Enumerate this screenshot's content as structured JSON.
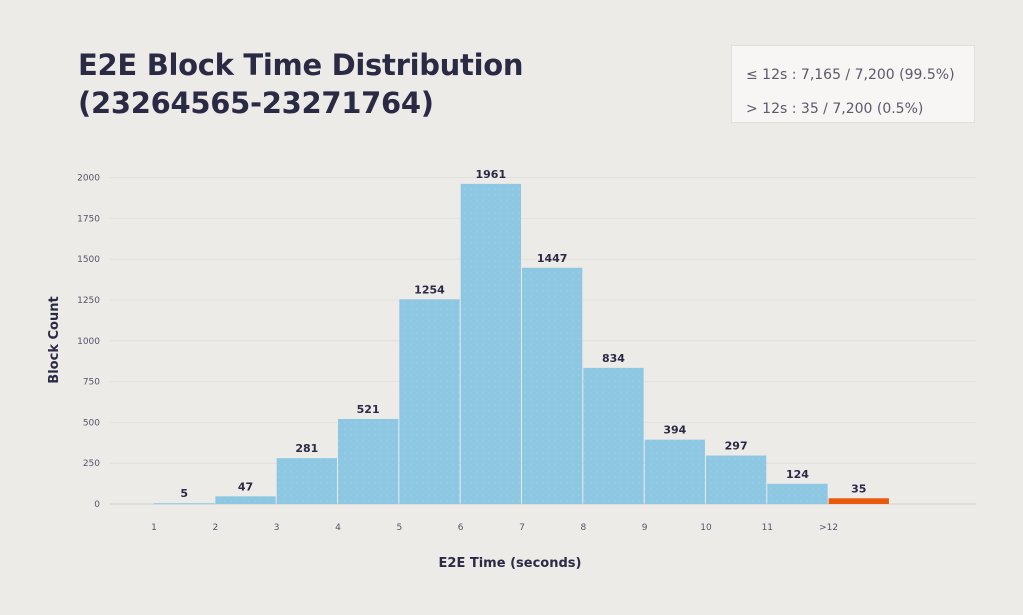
{
  "title": {
    "line1": "E2E Block Time Distribution",
    "line2": "(23264565-23271764)"
  },
  "summary": {
    "within": "≤ 12s : 7,165 / 7,200 (99.5%)",
    "over": "> 12s : 35 / 7,200 (0.5%)"
  },
  "chart_data": {
    "type": "bar",
    "xlabel": "E2E Time (seconds)",
    "ylabel": "Block Count",
    "x_ticks": [
      "1",
      "2",
      "3",
      "4",
      "5",
      "6",
      "7",
      "8",
      "9",
      "10",
      "11",
      ">12"
    ],
    "y_ticks": [
      0,
      250,
      500,
      750,
      1000,
      1250,
      1500,
      1750,
      2000
    ],
    "ylim": [
      0,
      2100
    ],
    "grid": true,
    "bars": [
      {
        "bin_start": 1,
        "value": 5,
        "label": "5",
        "color": "#8ec7e2"
      },
      {
        "bin_start": 2,
        "value": 47,
        "label": "47",
        "color": "#8ec7e2"
      },
      {
        "bin_start": 3,
        "value": 281,
        "label": "281",
        "color": "#8ec7e2"
      },
      {
        "bin_start": 4,
        "value": 521,
        "label": "521",
        "color": "#8ec7e2"
      },
      {
        "bin_start": 5,
        "value": 1254,
        "label": "1254",
        "color": "#8ec7e2"
      },
      {
        "bin_start": 6,
        "value": 1961,
        "label": "1961",
        "color": "#8ec7e2"
      },
      {
        "bin_start": 7,
        "value": 1447,
        "label": "1447",
        "color": "#8ec7e2"
      },
      {
        "bin_start": 8,
        "value": 834,
        "label": "834",
        "color": "#8ec7e2"
      },
      {
        "bin_start": 9,
        "value": 394,
        "label": "394",
        "color": "#8ec7e2"
      },
      {
        "bin_start": 10,
        "value": 297,
        "label": "297",
        "color": "#8ec7e2"
      },
      {
        "bin_start": 11,
        "value": 124,
        "label": "124",
        "color": "#8ec7e2"
      },
      {
        "bin_start": 12,
        "value": 35,
        "label": "35",
        "color": "#ea5a0c"
      }
    ]
  }
}
